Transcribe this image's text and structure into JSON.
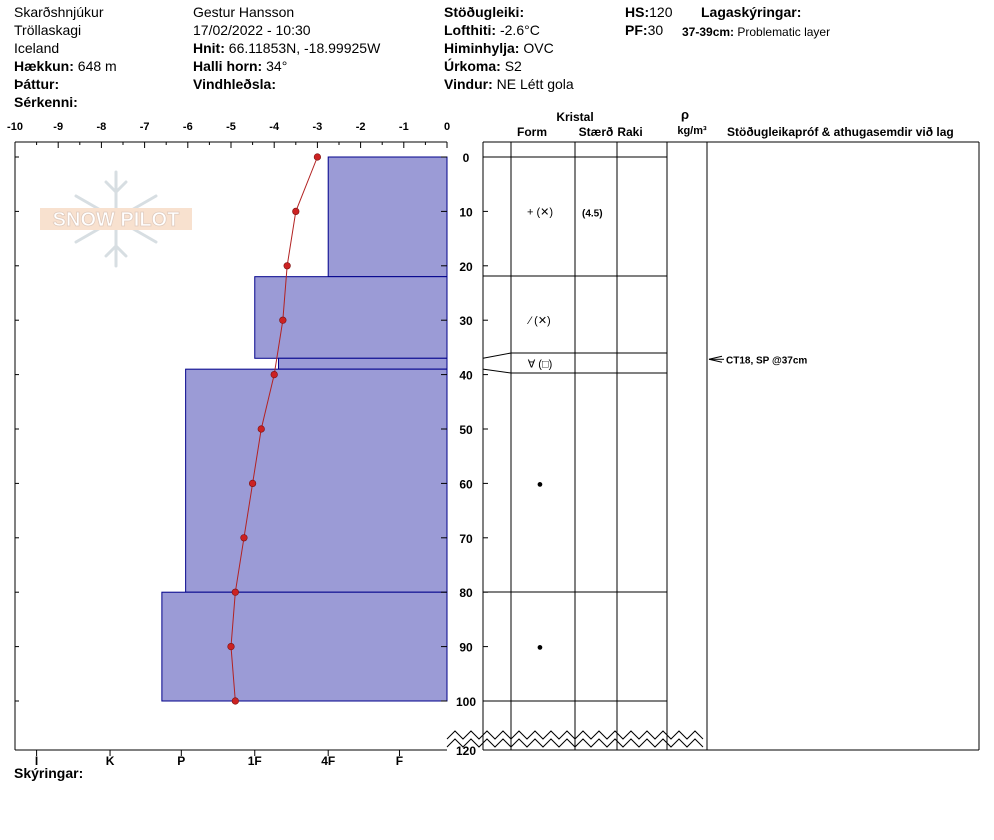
{
  "header": {
    "col1": {
      "location": "Skarðshnjúkur",
      "region": "Tröllaskagi",
      "country": "Iceland",
      "elevation_label": "Hækkun:",
      "elevation_value": "648 m",
      "aspect_label": "Þáttur:",
      "feature_label": "Sérkenni:"
    },
    "col2": {
      "observer": "Gestur Hansson",
      "datetime": "17/02/2022 - 10:30",
      "coords_label": "Hnit:",
      "coords_value": "66.11853N, -18.99925W",
      "slope_label": "Halli horn:",
      "slope_value": "34°",
      "wind_loading_label": "Vindhleðsla:"
    },
    "col3": {
      "stability_label": "Stöðugleiki:",
      "air_temp_label": "Lofthiti:",
      "air_temp_value": "-2.6°C",
      "sky_label": "Himinhylja:",
      "sky_value": "OVC",
      "precip_label": "Úrkoma:",
      "precip_value": "S2",
      "wind_label": "Vindur:",
      "wind_value": "NE Létt gola"
    },
    "col4": {
      "hs_label": "HS:",
      "hs_value": "120",
      "pf_label": "PF:",
      "pf_value": "30",
      "layer_notes_label": "Lagaskýringar:",
      "layer_note_depth": "37-39cm:",
      "layer_note_text": "Problematic layer"
    }
  },
  "table_headers": {
    "crystal": "Kristal",
    "form": "Form",
    "size": "Stærð",
    "moisture": "Raki",
    "rho": "ρ",
    "density_unit": "kg/m³",
    "tests_title": "Stöðugleikapróf & athugasemdir við lag"
  },
  "footer_label": "Skýringar:",
  "watermark": "SNOW PILOT",
  "colors": {
    "layer_fill": "#9b9bd6",
    "layer_stroke": "#00008b",
    "temp_line": "#b22222",
    "temp_point": "#cc2222"
  },
  "chart_data": {
    "type": "snow-profile",
    "temp_axis": {
      "range": [
        -10,
        0
      ],
      "ticks": [
        "-10",
        "-9",
        "-8",
        "-7",
        "-6",
        "-5",
        "-4",
        "-3",
        "-2",
        "-1",
        "0"
      ]
    },
    "depth_axis": {
      "range": [
        0,
        120
      ],
      "ticks": [
        "0",
        "10",
        "20",
        "30",
        "40",
        "50",
        "60",
        "70",
        "80",
        "90",
        "100",
        "120"
      ],
      "break_between": [
        100,
        120
      ]
    },
    "hardness_scale": [
      {
        "label": "I",
        "value": -9.5
      },
      {
        "label": "K",
        "value": -7.8
      },
      {
        "label": "P",
        "value": -6.15
      },
      {
        "label": "1F",
        "value": -4.45
      },
      {
        "label": "4F",
        "value": -2.75
      },
      {
        "label": "F",
        "value": -1.1
      }
    ],
    "layers": [
      {
        "top": 0,
        "bottom": 22,
        "hardness": -2.75
      },
      {
        "top": 22,
        "bottom": 37,
        "hardness": -4.45
      },
      {
        "top": 37,
        "bottom": 39,
        "hardness": -3.9
      },
      {
        "top": 39,
        "bottom": 80,
        "hardness": -6.05
      },
      {
        "top": 80,
        "bottom": 100,
        "hardness": -6.6
      }
    ],
    "temperature_profile": [
      {
        "depth": 0,
        "temp": -3.0
      },
      {
        "depth": 10,
        "temp": -3.5
      },
      {
        "depth": 20,
        "temp": -3.7
      },
      {
        "depth": 30,
        "temp": -3.8
      },
      {
        "depth": 40,
        "temp": -4.0
      },
      {
        "depth": 50,
        "temp": -4.3
      },
      {
        "depth": 60,
        "temp": -4.5
      },
      {
        "depth": 70,
        "temp": -4.7
      },
      {
        "depth": 80,
        "temp": -4.9
      },
      {
        "depth": 90,
        "temp": -5.0
      },
      {
        "depth": 100,
        "temp": -4.9
      }
    ],
    "crystal_rows": [
      {
        "depth": 10,
        "form": "+ (✕)",
        "size": "(4.5)"
      },
      {
        "depth": 30,
        "form": "⁄ (✕)",
        "size": ""
      },
      {
        "depth": 38,
        "form": "∀ (□)",
        "size": ""
      },
      {
        "depth": 60,
        "form": "●",
        "size": ""
      },
      {
        "depth": 90,
        "form": "●",
        "size": ""
      }
    ],
    "test_results": [
      {
        "depth": 37,
        "text": "CT18, SP @37cm"
      }
    ]
  }
}
